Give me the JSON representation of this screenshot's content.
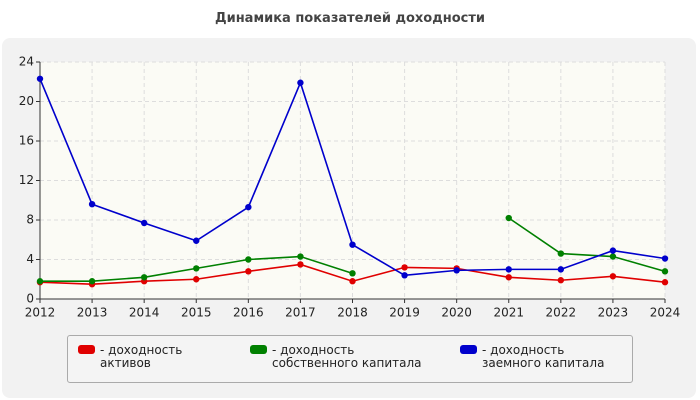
{
  "chart_data": {
    "type": "line",
    "title": "Динамика показателей доходности",
    "categories": [
      "2012",
      "2013",
      "2014",
      "2015",
      "2016",
      "2017",
      "2018",
      "2019",
      "2020",
      "2021",
      "2022",
      "2023",
      "2024"
    ],
    "series": [
      {
        "name": "- доходность активов",
        "color": "#e00000",
        "values": [
          1.7,
          1.5,
          1.8,
          2.0,
          2.8,
          3.5,
          1.8,
          3.2,
          3.1,
          2.2,
          1.9,
          2.3,
          1.7
        ]
      },
      {
        "name": "- доходность собственного капитала",
        "color": "#008000",
        "values": [
          1.8,
          1.8,
          2.2,
          3.1,
          4.0,
          4.3,
          2.6,
          null,
          null,
          8.2,
          4.6,
          4.3,
          2.8
        ]
      },
      {
        "name": "- доходность заемного капитала",
        "color": "#0000cc",
        "values": [
          22.3,
          9.6,
          7.7,
          5.9,
          9.3,
          21.9,
          5.5,
          2.4,
          2.9,
          3.0,
          3.0,
          4.9,
          4.1
        ]
      }
    ],
    "ylim": [
      0,
      24
    ],
    "yticks": [
      0,
      4,
      8,
      12,
      16,
      20,
      24
    ],
    "grid": true
  }
}
